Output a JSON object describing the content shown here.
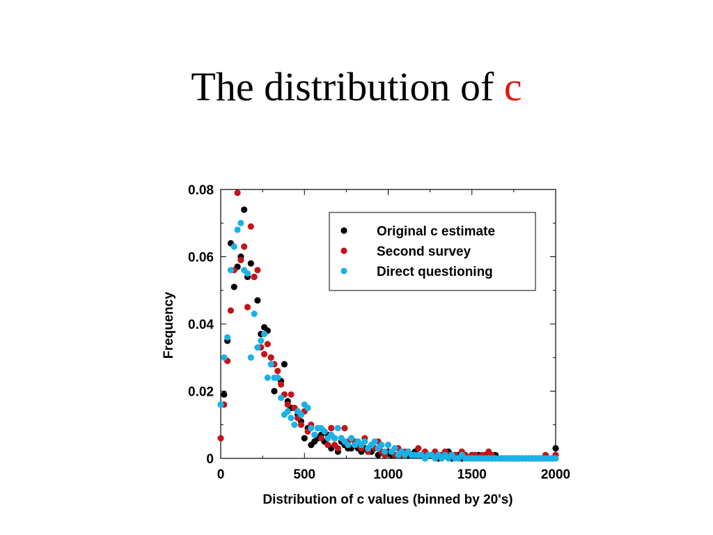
{
  "title": {
    "text": "The distribution of ",
    "highlight": "c"
  },
  "colors": {
    "title_highlight": "#e8120c",
    "original": "#000000",
    "second": "#c4141a",
    "direct": "#1ab2e6"
  },
  "chart_data": {
    "type": "scatter",
    "xlabel": "Distribution of c values (binned by 20's)",
    "ylabel": "Frequency",
    "xlim": [
      0,
      2000
    ],
    "ylim": [
      0,
      0.08
    ],
    "x_ticks": [
      0,
      500,
      1000,
      1500,
      2000
    ],
    "x_tick_labels": [
      "0",
      "500",
      "1000",
      "1500",
      "2000"
    ],
    "y_ticks": [
      0,
      0.02,
      0.04,
      0.06,
      0.08
    ],
    "y_tick_labels": [
      "0",
      "0.02",
      "0.04",
      "0.06",
      "0.08"
    ],
    "grid": false,
    "legend_position": "top-right",
    "series": [
      {
        "name": "Original c estimate",
        "color": "#000000",
        "points": [
          [
            0,
            0.016
          ],
          [
            20,
            0.019
          ],
          [
            40,
            0.035
          ],
          [
            60,
            0.064
          ],
          [
            80,
            0.051
          ],
          [
            100,
            0.057
          ],
          [
            120,
            0.06
          ],
          [
            140,
            0.074
          ],
          [
            160,
            0.054
          ],
          [
            180,
            0.058
          ],
          [
            200,
            0.054
          ],
          [
            220,
            0.047
          ],
          [
            240,
            0.037
          ],
          [
            260,
            0.039
          ],
          [
            280,
            0.038
          ],
          [
            300,
            0.03
          ],
          [
            320,
            0.02
          ],
          [
            340,
            0.024
          ],
          [
            360,
            0.023
          ],
          [
            380,
            0.028
          ],
          [
            400,
            0.017
          ],
          [
            420,
            0.015
          ],
          [
            440,
            0.015
          ],
          [
            460,
            0.013
          ],
          [
            480,
            0.011
          ],
          [
            500,
            0.006
          ],
          [
            520,
            0.009
          ],
          [
            540,
            0.004
          ],
          [
            560,
            0.005
          ],
          [
            580,
            0.006
          ],
          [
            600,
            0.007
          ],
          [
            620,
            0.005
          ],
          [
            640,
            0.007
          ],
          [
            660,
            0.003
          ],
          [
            680,
            0.006
          ],
          [
            700,
            0.002
          ],
          [
            720,
            0.005
          ],
          [
            740,
            0.004
          ],
          [
            760,
            0.003
          ],
          [
            780,
            0.003
          ],
          [
            800,
            0.004
          ],
          [
            820,
            0.003
          ],
          [
            840,
            0.002
          ],
          [
            860,
            0.003
          ],
          [
            880,
            0.002
          ],
          [
            900,
            0.002
          ],
          [
            920,
            0.003
          ],
          [
            940,
            0.001
          ],
          [
            960,
            0.002
          ],
          [
            980,
            0.001
          ],
          [
            1000,
            0.002
          ],
          [
            1020,
            0.001
          ],
          [
            1040,
            0.001
          ],
          [
            1060,
            0.001
          ],
          [
            1080,
            0.002
          ],
          [
            1100,
            0.001
          ],
          [
            1120,
            0.001
          ],
          [
            1140,
            0.001
          ],
          [
            1160,
            0.002
          ],
          [
            1180,
            0.001
          ],
          [
            1200,
            0.001
          ],
          [
            1220,
            0.0
          ],
          [
            1240,
            0.001
          ],
          [
            1260,
            0.001
          ],
          [
            1280,
            0.001
          ],
          [
            1300,
            0.0
          ],
          [
            1320,
            0.001
          ],
          [
            1340,
            0.001
          ],
          [
            1360,
            0.002
          ],
          [
            1380,
            0.0
          ],
          [
            1400,
            0.001
          ],
          [
            1420,
            0.001
          ],
          [
            1440,
            0.0
          ],
          [
            1460,
            0.001
          ],
          [
            1480,
            0.0
          ],
          [
            1500,
            0.001
          ],
          [
            1520,
            0.0
          ],
          [
            1540,
            0.001
          ],
          [
            1560,
            0.0
          ],
          [
            1580,
            0.001
          ],
          [
            1600,
            0.0
          ],
          [
            1620,
            0.0
          ],
          [
            1640,
            0.001
          ],
          [
            1660,
            0.0
          ],
          [
            1680,
            0.0
          ],
          [
            1700,
            0.0
          ],
          [
            1720,
            0.0
          ],
          [
            1740,
            0.0
          ],
          [
            1760,
            0.0
          ],
          [
            1780,
            0.0
          ],
          [
            1800,
            0.0
          ],
          [
            1820,
            0.0
          ],
          [
            1840,
            0.0
          ],
          [
            1860,
            0.0
          ],
          [
            1880,
            0.0
          ],
          [
            1900,
            0.0
          ],
          [
            1920,
            0.0
          ],
          [
            1940,
            0.0
          ],
          [
            1960,
            0.0
          ],
          [
            1980,
            0.0
          ],
          [
            2000,
            0.003
          ]
        ]
      },
      {
        "name": "Second survey",
        "color": "#c4141a",
        "points": [
          [
            0,
            0.006
          ],
          [
            20,
            0.016
          ],
          [
            40,
            0.029
          ],
          [
            60,
            0.044
          ],
          [
            80,
            0.056
          ],
          [
            100,
            0.079
          ],
          [
            120,
            0.059
          ],
          [
            140,
            0.063
          ],
          [
            160,
            0.045
          ],
          [
            180,
            0.069
          ],
          [
            200,
            0.054
          ],
          [
            220,
            0.056
          ],
          [
            240,
            0.033
          ],
          [
            260,
            0.031
          ],
          [
            280,
            0.034
          ],
          [
            300,
            0.03
          ],
          [
            320,
            0.028
          ],
          [
            340,
            0.026
          ],
          [
            360,
            0.022
          ],
          [
            380,
            0.019
          ],
          [
            400,
            0.016
          ],
          [
            420,
            0.019
          ],
          [
            440,
            0.015
          ],
          [
            460,
            0.012
          ],
          [
            480,
            0.01
          ],
          [
            500,
            0.014
          ],
          [
            520,
            0.008
          ],
          [
            540,
            0.01
          ],
          [
            560,
            0.007
          ],
          [
            580,
            0.009
          ],
          [
            600,
            0.006
          ],
          [
            620,
            0.008
          ],
          [
            640,
            0.004
          ],
          [
            660,
            0.009
          ],
          [
            680,
            0.004
          ],
          [
            700,
            0.003
          ],
          [
            720,
            0.006
          ],
          [
            740,
            0.009
          ],
          [
            760,
            0.005
          ],
          [
            780,
            0.006
          ],
          [
            800,
            0.005
          ],
          [
            820,
            0.004
          ],
          [
            840,
            0.003
          ],
          [
            860,
            0.006
          ],
          [
            880,
            0.002
          ],
          [
            900,
            0.004
          ],
          [
            920,
            0.003
          ],
          [
            940,
            0.005
          ],
          [
            960,
            0.002
          ],
          [
            980,
            0.001
          ],
          [
            1000,
            0.004
          ],
          [
            1020,
            0.002
          ],
          [
            1040,
            0.001
          ],
          [
            1060,
            0.003
          ],
          [
            1080,
            0.001
          ],
          [
            1100,
            0.002
          ],
          [
            1120,
            0.002
          ],
          [
            1140,
            0.001
          ],
          [
            1160,
            0.001
          ],
          [
            1180,
            0.003
          ],
          [
            1200,
            0.001
          ],
          [
            1220,
            0.002
          ],
          [
            1240,
            0.001
          ],
          [
            1260,
            0.001
          ],
          [
            1280,
            0.002
          ],
          [
            1300,
            0.001
          ],
          [
            1320,
            0.001
          ],
          [
            1340,
            0.002
          ],
          [
            1360,
            0.001
          ],
          [
            1380,
            0.001
          ],
          [
            1400,
            0.001
          ],
          [
            1420,
            0.0
          ],
          [
            1440,
            0.002
          ],
          [
            1460,
            0.001
          ],
          [
            1480,
            0.0
          ],
          [
            1500,
            0.001
          ],
          [
            1520,
            0.001
          ],
          [
            1540,
            0.0
          ],
          [
            1560,
            0.001
          ],
          [
            1580,
            0.001
          ],
          [
            1600,
            0.002
          ],
          [
            1620,
            0.001
          ],
          [
            1640,
            0.0
          ],
          [
            1660,
            0.0
          ],
          [
            1680,
            0.0
          ],
          [
            1700,
            0.0
          ],
          [
            1720,
            0.0
          ],
          [
            1740,
            0.0
          ],
          [
            1760,
            0.0
          ],
          [
            1780,
            0.0
          ],
          [
            1800,
            0.0
          ],
          [
            1820,
            0.0
          ],
          [
            1840,
            0.0
          ],
          [
            1860,
            0.0
          ],
          [
            1880,
            0.0
          ],
          [
            1900,
            0.0
          ],
          [
            1920,
            0.0
          ],
          [
            1940,
            0.001
          ],
          [
            1960,
            0.0
          ],
          [
            1980,
            0.0
          ],
          [
            2000,
            0.001
          ]
        ]
      },
      {
        "name": "Direct questioning",
        "color": "#1ab2e6",
        "points": [
          [
            0,
            0.016
          ],
          [
            20,
            0.03
          ],
          [
            40,
            0.036
          ],
          [
            60,
            0.056
          ],
          [
            80,
            0.063
          ],
          [
            100,
            0.068
          ],
          [
            120,
            0.07
          ],
          [
            140,
            0.056
          ],
          [
            160,
            0.055
          ],
          [
            180,
            0.03
          ],
          [
            200,
            0.043
          ],
          [
            220,
            0.033
          ],
          [
            240,
            0.035
          ],
          [
            260,
            0.037
          ],
          [
            280,
            0.024
          ],
          [
            300,
            0.028
          ],
          [
            320,
            0.024
          ],
          [
            340,
            0.024
          ],
          [
            360,
            0.018
          ],
          [
            380,
            0.013
          ],
          [
            400,
            0.014
          ],
          [
            420,
            0.012
          ],
          [
            440,
            0.01
          ],
          [
            460,
            0.014
          ],
          [
            480,
            0.013
          ],
          [
            500,
            0.016
          ],
          [
            520,
            0.015
          ],
          [
            540,
            0.009
          ],
          [
            560,
            0.007
          ],
          [
            580,
            0.009
          ],
          [
            600,
            0.009
          ],
          [
            620,
            0.008
          ],
          [
            640,
            0.006
          ],
          [
            660,
            0.007
          ],
          [
            680,
            0.006
          ],
          [
            700,
            0.009
          ],
          [
            720,
            0.006
          ],
          [
            740,
            0.005
          ],
          [
            760,
            0.004
          ],
          [
            780,
            0.006
          ],
          [
            800,
            0.004
          ],
          [
            820,
            0.005
          ],
          [
            840,
            0.004
          ],
          [
            860,
            0.005
          ],
          [
            880,
            0.003
          ],
          [
            900,
            0.004
          ],
          [
            920,
            0.005
          ],
          [
            940,
            0.003
          ],
          [
            960,
            0.004
          ],
          [
            980,
            0.002
          ],
          [
            1000,
            0.004
          ],
          [
            1020,
            0.002
          ],
          [
            1040,
            0.003
          ],
          [
            1060,
            0.001
          ],
          [
            1080,
            0.002
          ],
          [
            1100,
            0.001
          ],
          [
            1120,
            0.002
          ],
          [
            1140,
            0.001
          ],
          [
            1160,
            0.001
          ],
          [
            1180,
            0.001
          ],
          [
            1200,
            0.001
          ],
          [
            1220,
            0.0
          ],
          [
            1240,
            0.001
          ],
          [
            1260,
            0.001
          ],
          [
            1280,
            0.0
          ],
          [
            1300,
            0.001
          ],
          [
            1320,
            0.0
          ],
          [
            1340,
            0.001
          ],
          [
            1360,
            0.0
          ],
          [
            1380,
            0.001
          ],
          [
            1400,
            0.0
          ],
          [
            1420,
            0.0
          ],
          [
            1440,
            0.001
          ],
          [
            1460,
            0.0
          ],
          [
            1480,
            0.0
          ],
          [
            1500,
            0.0
          ],
          [
            1520,
            0.0
          ],
          [
            1540,
            0.0
          ],
          [
            1560,
            0.0
          ],
          [
            1580,
            0.0
          ],
          [
            1600,
            0.0
          ],
          [
            1620,
            0.0
          ],
          [
            1640,
            0.0
          ],
          [
            1660,
            0.0
          ],
          [
            1680,
            0.0
          ],
          [
            1700,
            0.0
          ],
          [
            1720,
            0.0
          ],
          [
            1740,
            0.0
          ],
          [
            1760,
            0.0
          ],
          [
            1780,
            0.0
          ],
          [
            1800,
            0.0
          ],
          [
            1820,
            0.0
          ],
          [
            1840,
            0.0
          ],
          [
            1860,
            0.0
          ],
          [
            1880,
            0.0
          ],
          [
            1900,
            0.0
          ],
          [
            1920,
            0.0
          ],
          [
            1940,
            0.0
          ],
          [
            1960,
            0.0
          ],
          [
            1980,
            0.0
          ],
          [
            2000,
            0.0
          ]
        ]
      }
    ]
  }
}
